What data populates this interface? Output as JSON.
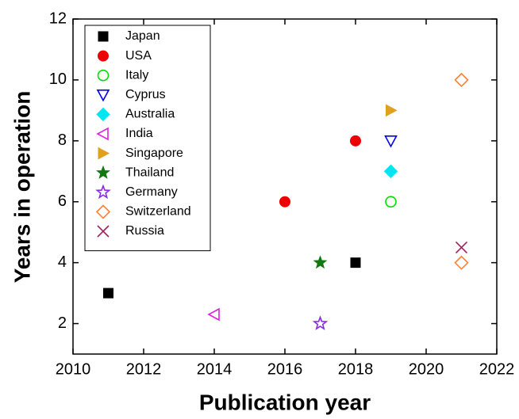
{
  "chart_data": {
    "type": "scatter",
    "x_label": "Publication year",
    "y_label": "Years in operation",
    "xlim": [
      2010,
      2022
    ],
    "xticks": [
      2010,
      2012,
      2014,
      2016,
      2018,
      2020,
      2022
    ],
    "ylim": [
      1,
      12
    ],
    "yticks": [
      2,
      4,
      6,
      8,
      10,
      12
    ],
    "legend": "upper left",
    "series": [
      {
        "name": "Japan",
        "color": "#000000",
        "marker": "square",
        "x": [
          2011,
          2018
        ],
        "values": [
          3,
          4
        ]
      },
      {
        "name": "USA",
        "color": "#ee0000",
        "marker": "circle",
        "x": [
          2016,
          2018
        ],
        "values": [
          6,
          8
        ]
      },
      {
        "name": "Italy",
        "color": "#00dd00",
        "marker": "circle-open",
        "x": [
          2019
        ],
        "values": [
          6
        ]
      },
      {
        "name": "Cyprus",
        "color": "#0000ee",
        "marker": "triangle-down-open",
        "x": [
          2019
        ],
        "values": [
          8
        ]
      },
      {
        "name": "Australia",
        "color": "#00e5f0",
        "marker": "diamond",
        "x": [
          2019
        ],
        "values": [
          7
        ]
      },
      {
        "name": "India",
        "color": "#e020e0",
        "marker": "triangle-left-open",
        "x": [
          2014
        ],
        "values": [
          2.3
        ]
      },
      {
        "name": "Singapore",
        "color": "#e0a020",
        "marker": "triangle-right",
        "x": [
          2019
        ],
        "values": [
          9
        ]
      },
      {
        "name": "Thailand",
        "color": "#107a10",
        "marker": "star",
        "x": [
          2017
        ],
        "values": [
          4
        ]
      },
      {
        "name": "Germany",
        "color": "#8a2be2",
        "marker": "star-open",
        "x": [
          2017
        ],
        "values": [
          2
        ]
      },
      {
        "name": "Switzerland",
        "color": "#ff8030",
        "marker": "diamond-open",
        "x": [
          2021,
          2021
        ],
        "values": [
          10,
          4
        ]
      },
      {
        "name": "Russia",
        "color": "#a0205f",
        "marker": "x",
        "x": [
          2021
        ],
        "values": [
          4.5
        ]
      }
    ]
  }
}
